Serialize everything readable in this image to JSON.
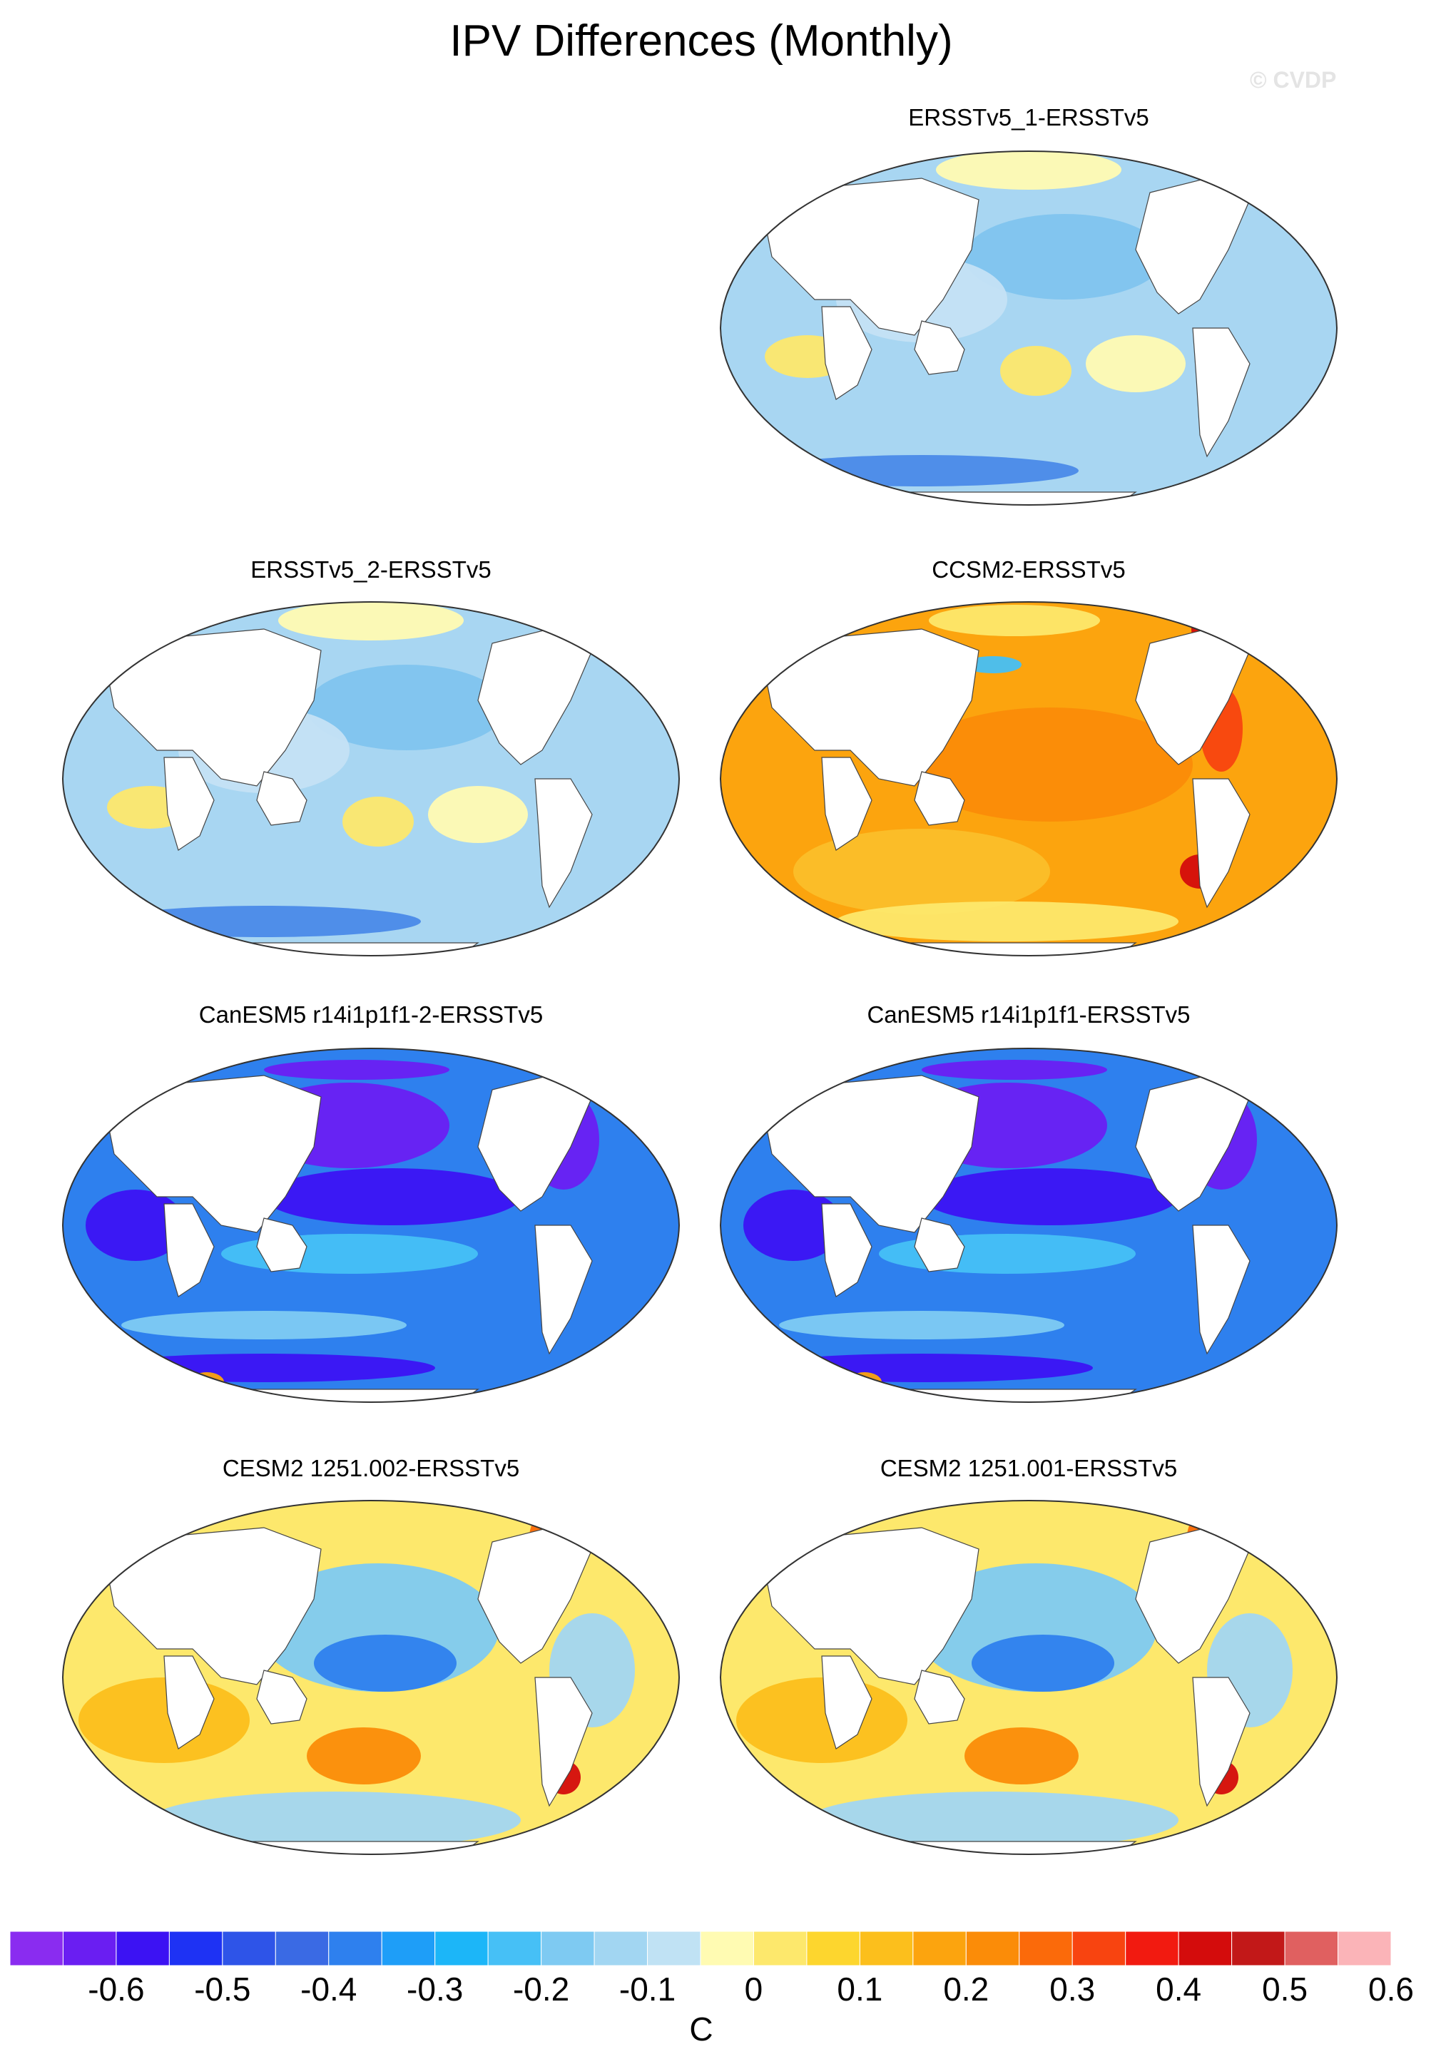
{
  "title": "IPV Differences (Monthly)",
  "watermark": "© CVDP",
  "units": "C",
  "colorbar": {
    "colors": [
      "#8a2cf0",
      "#6a1ef2",
      "#3c12f3",
      "#1e32f4",
      "#2e54e8",
      "#3a6ae4",
      "#2e80ee",
      "#1e9ef8",
      "#1cb6f8",
      "#46c0f6",
      "#7ecaf2",
      "#a2d6f2",
      "#c0e2f4",
      "#fffbb2",
      "#fde86c",
      "#fdd62e",
      "#fcbf1c",
      "#fca40e",
      "#fb8c08",
      "#fb6a0a",
      "#f84410",
      "#f21a10",
      "#d40c0c",
      "#c21818",
      "#e06060",
      "#fbb4b8"
    ],
    "tick_labels": [
      "-0.6",
      "-0.5",
      "-0.4",
      "-0.3",
      "-0.2",
      "-0.1",
      "0",
      "0.1",
      "0.2",
      "0.3",
      "0.4",
      "0.5",
      "0.6"
    ]
  },
  "panels": [
    {
      "title": "ERSSTv5_1-ERSSTv5",
      "scheme": "ersst"
    },
    {
      "title": "ERSSTv5_2-ERSSTv5",
      "scheme": "ersst"
    },
    {
      "title": "CCSM2-ERSSTv5",
      "scheme": "ccsm"
    },
    {
      "title": "CanESM5 r14i1p1f1-2-ERSSTv5",
      "scheme": "canesm"
    },
    {
      "title": "CanESM5 r14i1p1f1-ERSSTv5",
      "scheme": "canesm"
    },
    {
      "title": "CESM2 1251.002-ERSSTv5",
      "scheme": "cesm"
    },
    {
      "title": "CESM2 1251.001-ERSSTv5",
      "scheme": "cesm"
    }
  ]
}
